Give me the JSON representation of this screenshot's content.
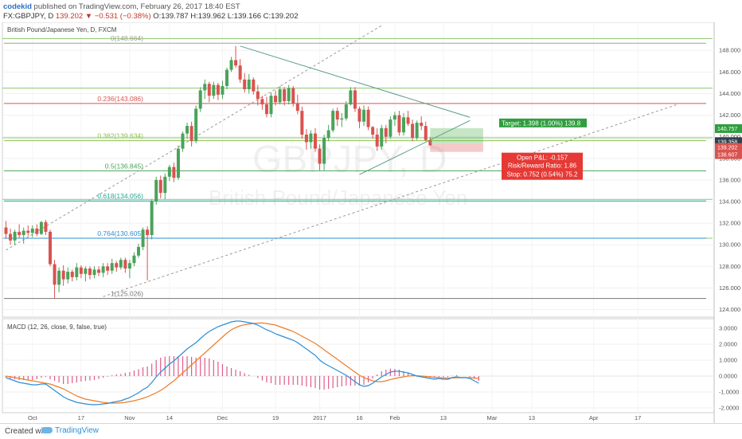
{
  "header": {
    "user": "codekid",
    "published": "published on TradingView.com, February 26, 2017 18:40 EST",
    "symbol": "FX:GBPJPY, D",
    "change": "139.202 ▼ −0.531 (−0.38%)",
    "ohlc": "O:139.787 H:139.962 L:139.166 C:139.202"
  },
  "footer": {
    "created": "Created with",
    "brand": "TradingView"
  },
  "colors": {
    "up": "#4aa35a",
    "down": "#d9534f",
    "macd": "#2a8fd6",
    "signal": "#ef7d28",
    "hist": "#e05a8c"
  },
  "chart_data": {
    "type": "candlestick",
    "title": "British Pound/Japanese Yen, D, FXCM",
    "watermark": "GBPJPY, D",
    "watermark_sub": "British Pound/Japanese Yen",
    "ylim": [
      123.3,
      150.6
    ],
    "yticks": [
      124,
      126,
      128,
      130,
      132,
      134,
      136,
      138,
      140,
      142,
      144,
      146,
      148
    ],
    "ytick_labels": [
      "124.000",
      "126.000",
      "128.000",
      "130.000",
      "132.000",
      "134.000",
      "136.000",
      "138.000",
      "140.000",
      "142.000",
      "144.000",
      "146.000",
      "148.000"
    ],
    "xticks": [
      {
        "i": 6,
        "label": "Oct"
      },
      {
        "i": 17,
        "label": "17"
      },
      {
        "i": 28,
        "label": "Nov"
      },
      {
        "i": 37,
        "label": "14"
      },
      {
        "i": 49,
        "label": "Dec"
      },
      {
        "i": 61,
        "label": "19"
      },
      {
        "i": 71,
        "label": "2017"
      },
      {
        "i": 80,
        "label": "16"
      },
      {
        "i": 88,
        "label": "Feb"
      },
      {
        "i": 99,
        "label": "13"
      },
      {
        "i": 110,
        "label": "Mar"
      },
      {
        "i": 119,
        "label": "13"
      },
      {
        "i": 133,
        "label": "Apr"
      },
      {
        "i": 143,
        "label": "17"
      }
    ],
    "candles": [
      [
        131.6,
        132.2,
        130.6,
        131.0
      ],
      [
        131.0,
        131.5,
        130.0,
        130.4
      ],
      [
        130.4,
        131.4,
        130.0,
        131.2
      ],
      [
        131.2,
        131.9,
        130.6,
        130.9
      ],
      [
        130.9,
        131.6,
        130.1,
        131.3
      ],
      [
        131.3,
        131.8,
        130.8,
        131.1
      ],
      [
        131.1,
        131.8,
        130.7,
        131.5
      ],
      [
        131.5,
        131.9,
        130.8,
        131.0
      ],
      [
        131.0,
        132.2,
        130.9,
        132.1
      ],
      [
        132.1,
        132.3,
        130.9,
        131.2
      ],
      [
        131.2,
        131.4,
        128.0,
        128.2
      ],
      [
        128.2,
        128.6,
        125.0,
        126.3
      ],
      [
        126.3,
        127.9,
        125.6,
        127.6
      ],
      [
        127.6,
        128.1,
        126.2,
        126.8
      ],
      [
        126.8,
        127.9,
        126.4,
        127.5
      ],
      [
        127.5,
        127.7,
        126.6,
        127.0
      ],
      [
        127.0,
        128.3,
        126.7,
        127.9
      ],
      [
        127.9,
        128.1,
        126.9,
        127.3
      ],
      [
        127.3,
        128.0,
        126.6,
        127.8
      ],
      [
        127.8,
        128.0,
        126.8,
        127.2
      ],
      [
        127.2,
        128.0,
        126.9,
        127.7
      ],
      [
        127.7,
        128.0,
        127.1,
        127.4
      ],
      [
        127.4,
        128.3,
        127.0,
        128.0
      ],
      [
        128.0,
        128.3,
        127.2,
        127.6
      ],
      [
        127.6,
        128.7,
        127.3,
        128.3
      ],
      [
        128.3,
        128.5,
        127.5,
        127.9
      ],
      [
        127.9,
        128.8,
        127.7,
        128.6
      ],
      [
        128.6,
        128.8,
        127.4,
        127.8
      ],
      [
        127.8,
        128.6,
        126.9,
        128.3
      ],
      [
        128.3,
        129.3,
        128.0,
        129.0
      ],
      [
        129.0,
        130.1,
        128.8,
        129.8
      ],
      [
        129.8,
        131.6,
        129.5,
        131.4
      ],
      [
        131.4,
        131.7,
        126.7,
        130.9
      ],
      [
        130.9,
        134.2,
        130.5,
        134.0
      ],
      [
        134.0,
        136.3,
        133.7,
        136.0
      ],
      [
        136.0,
        136.4,
        134.3,
        134.8
      ],
      [
        134.8,
        136.6,
        134.2,
        136.3
      ],
      [
        136.3,
        137.4,
        135.9,
        137.2
      ],
      [
        137.2,
        137.6,
        135.8,
        136.2
      ],
      [
        136.2,
        139.2,
        136.0,
        138.9
      ],
      [
        138.9,
        140.5,
        138.6,
        140.3
      ],
      [
        140.3,
        141.3,
        139.8,
        141.0
      ],
      [
        141.0,
        141.4,
        139.1,
        139.6
      ],
      [
        139.6,
        142.9,
        139.4,
        142.6
      ],
      [
        142.6,
        144.6,
        142.3,
        144.3
      ],
      [
        144.3,
        145.3,
        143.5,
        144.9
      ],
      [
        144.9,
        145.1,
        143.2,
        143.8
      ],
      [
        143.8,
        145.1,
        143.5,
        144.8
      ],
      [
        144.8,
        145.0,
        143.4,
        143.9
      ],
      [
        143.9,
        145.2,
        143.5,
        144.7
      ],
      [
        144.7,
        146.4,
        144.4,
        146.2
      ],
      [
        146.2,
        147.4,
        146.0,
        147.1
      ],
      [
        147.1,
        148.4,
        146.4,
        146.6
      ],
      [
        146.6,
        147.2,
        145.0,
        145.3
      ],
      [
        145.3,
        145.9,
        144.1,
        144.4
      ],
      [
        144.4,
        145.8,
        144.0,
        145.3
      ],
      [
        145.3,
        145.5,
        143.9,
        144.2
      ],
      [
        144.2,
        144.8,
        142.9,
        143.5
      ],
      [
        143.5,
        143.8,
        142.5,
        143.0
      ],
      [
        143.0,
        143.7,
        141.8,
        142.1
      ],
      [
        142.1,
        144.1,
        141.8,
        143.8
      ],
      [
        143.8,
        144.3,
        142.9,
        143.2
      ],
      [
        143.2,
        144.7,
        143.0,
        144.4
      ],
      [
        144.4,
        144.6,
        142.9,
        143.3
      ],
      [
        143.3,
        144.8,
        143.0,
        144.5
      ],
      [
        144.5,
        144.7,
        142.8,
        143.1
      ],
      [
        143.1,
        143.9,
        142.1,
        142.4
      ],
      [
        142.4,
        142.8,
        139.8,
        140.2
      ],
      [
        140.2,
        140.7,
        138.8,
        139.5
      ],
      [
        139.5,
        140.6,
        138.9,
        140.3
      ],
      [
        140.3,
        140.8,
        138.6,
        138.9
      ],
      [
        138.9,
        139.3,
        136.9,
        137.5
      ],
      [
        137.5,
        140.2,
        136.9,
        139.9
      ],
      [
        139.9,
        141.1,
        139.6,
        140.6
      ],
      [
        140.6,
        142.6,
        140.4,
        142.4
      ],
      [
        142.4,
        142.7,
        141.0,
        141.6
      ],
      [
        141.6,
        142.2,
        140.9,
        141.7
      ],
      [
        141.7,
        143.3,
        141.5,
        143.0
      ],
      [
        143.0,
        144.6,
        142.9,
        144.3
      ],
      [
        144.3,
        144.6,
        142.3,
        142.6
      ],
      [
        142.6,
        142.8,
        140.8,
        141.4
      ],
      [
        141.4,
        142.9,
        141.0,
        142.5
      ],
      [
        142.5,
        142.8,
        140.6,
        140.9
      ],
      [
        140.9,
        141.0,
        139.8,
        140.2
      ],
      [
        140.2,
        140.8,
        138.7,
        139.1
      ],
      [
        139.1,
        141.1,
        138.8,
        140.8
      ],
      [
        140.8,
        141.1,
        139.4,
        140.0
      ],
      [
        140.0,
        141.9,
        139.8,
        141.6
      ],
      [
        141.6,
        142.3,
        141.0,
        142.0
      ],
      [
        142.0,
        142.4,
        140.1,
        140.4
      ],
      [
        140.4,
        142.2,
        140.1,
        141.8
      ],
      [
        141.8,
        142.4,
        141.0,
        141.2
      ],
      [
        141.2,
        141.6,
        139.6,
        139.9
      ],
      [
        139.9,
        141.5,
        139.7,
        141.3
      ],
      [
        141.3,
        141.9,
        140.6,
        141.0
      ],
      [
        141.0,
        141.4,
        139.6,
        139.7
      ],
      [
        139.7,
        139.962,
        139.166,
        139.202
      ]
    ],
    "price_labels": [
      {
        "label": "140.757",
        "value": 140.757,
        "color": "#2e9e3e"
      },
      {
        "label": "139.358",
        "value": 139.55,
        "color": "#333f4d"
      },
      {
        "label": "139.202",
        "value": 139.0,
        "color": "#d9534f"
      },
      {
        "label": "138.607",
        "value": 138.35,
        "color": "#d9534f"
      }
    ],
    "fib_levels": [
      {
        "ratio": "0",
        "value": 148.664,
        "label": "0(148.664)",
        "color": "#a0a090"
      },
      {
        "ratio": "0.236",
        "value": 143.086,
        "label": "0.236(143.086)",
        "color": "#d9534f"
      },
      {
        "ratio": "0.382",
        "value": 139.634,
        "label": "0.382(139.634)",
        "color": "#8bc34a"
      },
      {
        "ratio": "0.5",
        "value": 136.845,
        "label": "0.5(136.845)",
        "color": "#4aa35a"
      },
      {
        "ratio": "0.618",
        "value": 134.056,
        "label": "0.618(134.056)",
        "color": "#26a69a"
      },
      {
        "ratio": "0.764",
        "value": 130.605,
        "label": "0.764(130.605)",
        "color": "#2a8fd6"
      },
      {
        "ratio": "1",
        "value": 125.026,
        "label": "1(125.026)",
        "color": "#777777"
      }
    ],
    "horizontal_lines": [
      149.1,
      144.5,
      139.9,
      134.2,
      130.6
    ],
    "trend_lines": [
      {
        "from": {
          "i": 0,
          "v": 129.5
        },
        "to": {
          "i": 85,
          "v": 150.3
        },
        "style": "dashed"
      },
      {
        "from": {
          "i": 22,
          "v": 125.2
        },
        "to": {
          "i": 152,
          "v": 143.0
        },
        "style": "dashed"
      },
      {
        "from": {
          "i": 53,
          "v": 148.4
        },
        "to": {
          "i": 105,
          "v": 141.8
        },
        "style": "solid"
      },
      {
        "from": {
          "i": 80,
          "v": 136.5
        },
        "to": {
          "i": 105,
          "v": 141.5
        },
        "style": "solid"
      }
    ],
    "position": {
      "target": "Target: 1.398 (1.00%) 139.8",
      "pnl": "Open P&L: -0.157",
      "rr": "Risk/Reward Ratio: 1.86",
      "stop": "Stop: 0.752 (0.54%) 75.2",
      "start_i": 96,
      "end_i": 108,
      "entry": 139.4,
      "target_price": 140.8,
      "stop_price": 138.6
    },
    "macd": {
      "title": "MACD (12, 26, close, 9, false, true)",
      "ylim": [
        -2.3,
        3.6
      ],
      "yticks": [
        3.0,
        2.0,
        1.0,
        0.0,
        -1.0,
        -2.0
      ],
      "ytick_labels": [
        "3.0000",
        "2.0000",
        "1.0000",
        "0.0000",
        "-1.0000",
        "-2.0000"
      ],
      "macd": [
        -0.1,
        -0.2,
        -0.3,
        -0.4,
        -0.45,
        -0.5,
        -0.55,
        -0.55,
        -0.5,
        -0.5,
        -0.7,
        -0.9,
        -1.1,
        -1.3,
        -1.45,
        -1.55,
        -1.65,
        -1.7,
        -1.75,
        -1.78,
        -1.8,
        -1.78,
        -1.75,
        -1.72,
        -1.65,
        -1.6,
        -1.55,
        -1.45,
        -1.35,
        -1.2,
        -1.05,
        -0.85,
        -0.7,
        -0.4,
        -0.05,
        0.25,
        0.5,
        0.75,
        0.95,
        1.2,
        1.45,
        1.7,
        1.9,
        2.1,
        2.35,
        2.6,
        2.8,
        2.95,
        3.1,
        3.2,
        3.3,
        3.4,
        3.45,
        3.45,
        3.4,
        3.35,
        3.3,
        3.2,
        3.05,
        2.9,
        2.8,
        2.65,
        2.55,
        2.45,
        2.35,
        2.25,
        2.1,
        1.9,
        1.7,
        1.5,
        1.3,
        1.0,
        0.8,
        0.65,
        0.5,
        0.35,
        0.2,
        0.05,
        -0.15,
        -0.35,
        -0.55,
        -0.65,
        -0.6,
        -0.45,
        -0.25,
        -0.05,
        0.1,
        0.25,
        0.3,
        0.3,
        0.25,
        0.2,
        0.1,
        0.0,
        -0.05,
        -0.1,
        -0.15,
        -0.2,
        -0.15,
        -0.2,
        -0.2,
        -0.1,
        -0.05,
        -0.1,
        -0.1,
        -0.15,
        -0.3,
        -0.45
      ],
      "signal": [
        0.0,
        -0.05,
        -0.1,
        -0.15,
        -0.2,
        -0.25,
        -0.3,
        -0.35,
        -0.4,
        -0.45,
        -0.5,
        -0.6,
        -0.7,
        -0.8,
        -0.95,
        -1.1,
        -1.25,
        -1.35,
        -1.45,
        -1.5,
        -1.55,
        -1.6,
        -1.65,
        -1.68,
        -1.7,
        -1.7,
        -1.68,
        -1.65,
        -1.6,
        -1.55,
        -1.48,
        -1.4,
        -1.3,
        -1.18,
        -1.05,
        -0.9,
        -0.72,
        -0.5,
        -0.3,
        -0.05,
        0.2,
        0.45,
        0.7,
        0.95,
        1.2,
        1.45,
        1.7,
        1.95,
        2.2,
        2.45,
        2.7,
        2.9,
        3.05,
        3.15,
        3.22,
        3.27,
        3.3,
        3.32,
        3.33,
        3.3,
        3.25,
        3.2,
        3.1,
        3.0,
        2.9,
        2.8,
        2.65,
        2.5,
        2.35,
        2.2,
        2.05,
        1.85,
        1.65,
        1.45,
        1.25,
        1.05,
        0.85,
        0.65,
        0.45,
        0.25,
        0.05,
        -0.1,
        -0.2,
        -0.3,
        -0.35,
        -0.35,
        -0.3,
        -0.22,
        -0.15,
        -0.1,
        -0.05,
        0.0,
        0.02,
        0.02,
        0.0,
        -0.02,
        -0.05,
        -0.08,
        -0.1,
        -0.12,
        -0.13,
        -0.12,
        -0.11,
        -0.1,
        -0.1,
        -0.1,
        -0.12,
        -0.15
      ]
    }
  }
}
